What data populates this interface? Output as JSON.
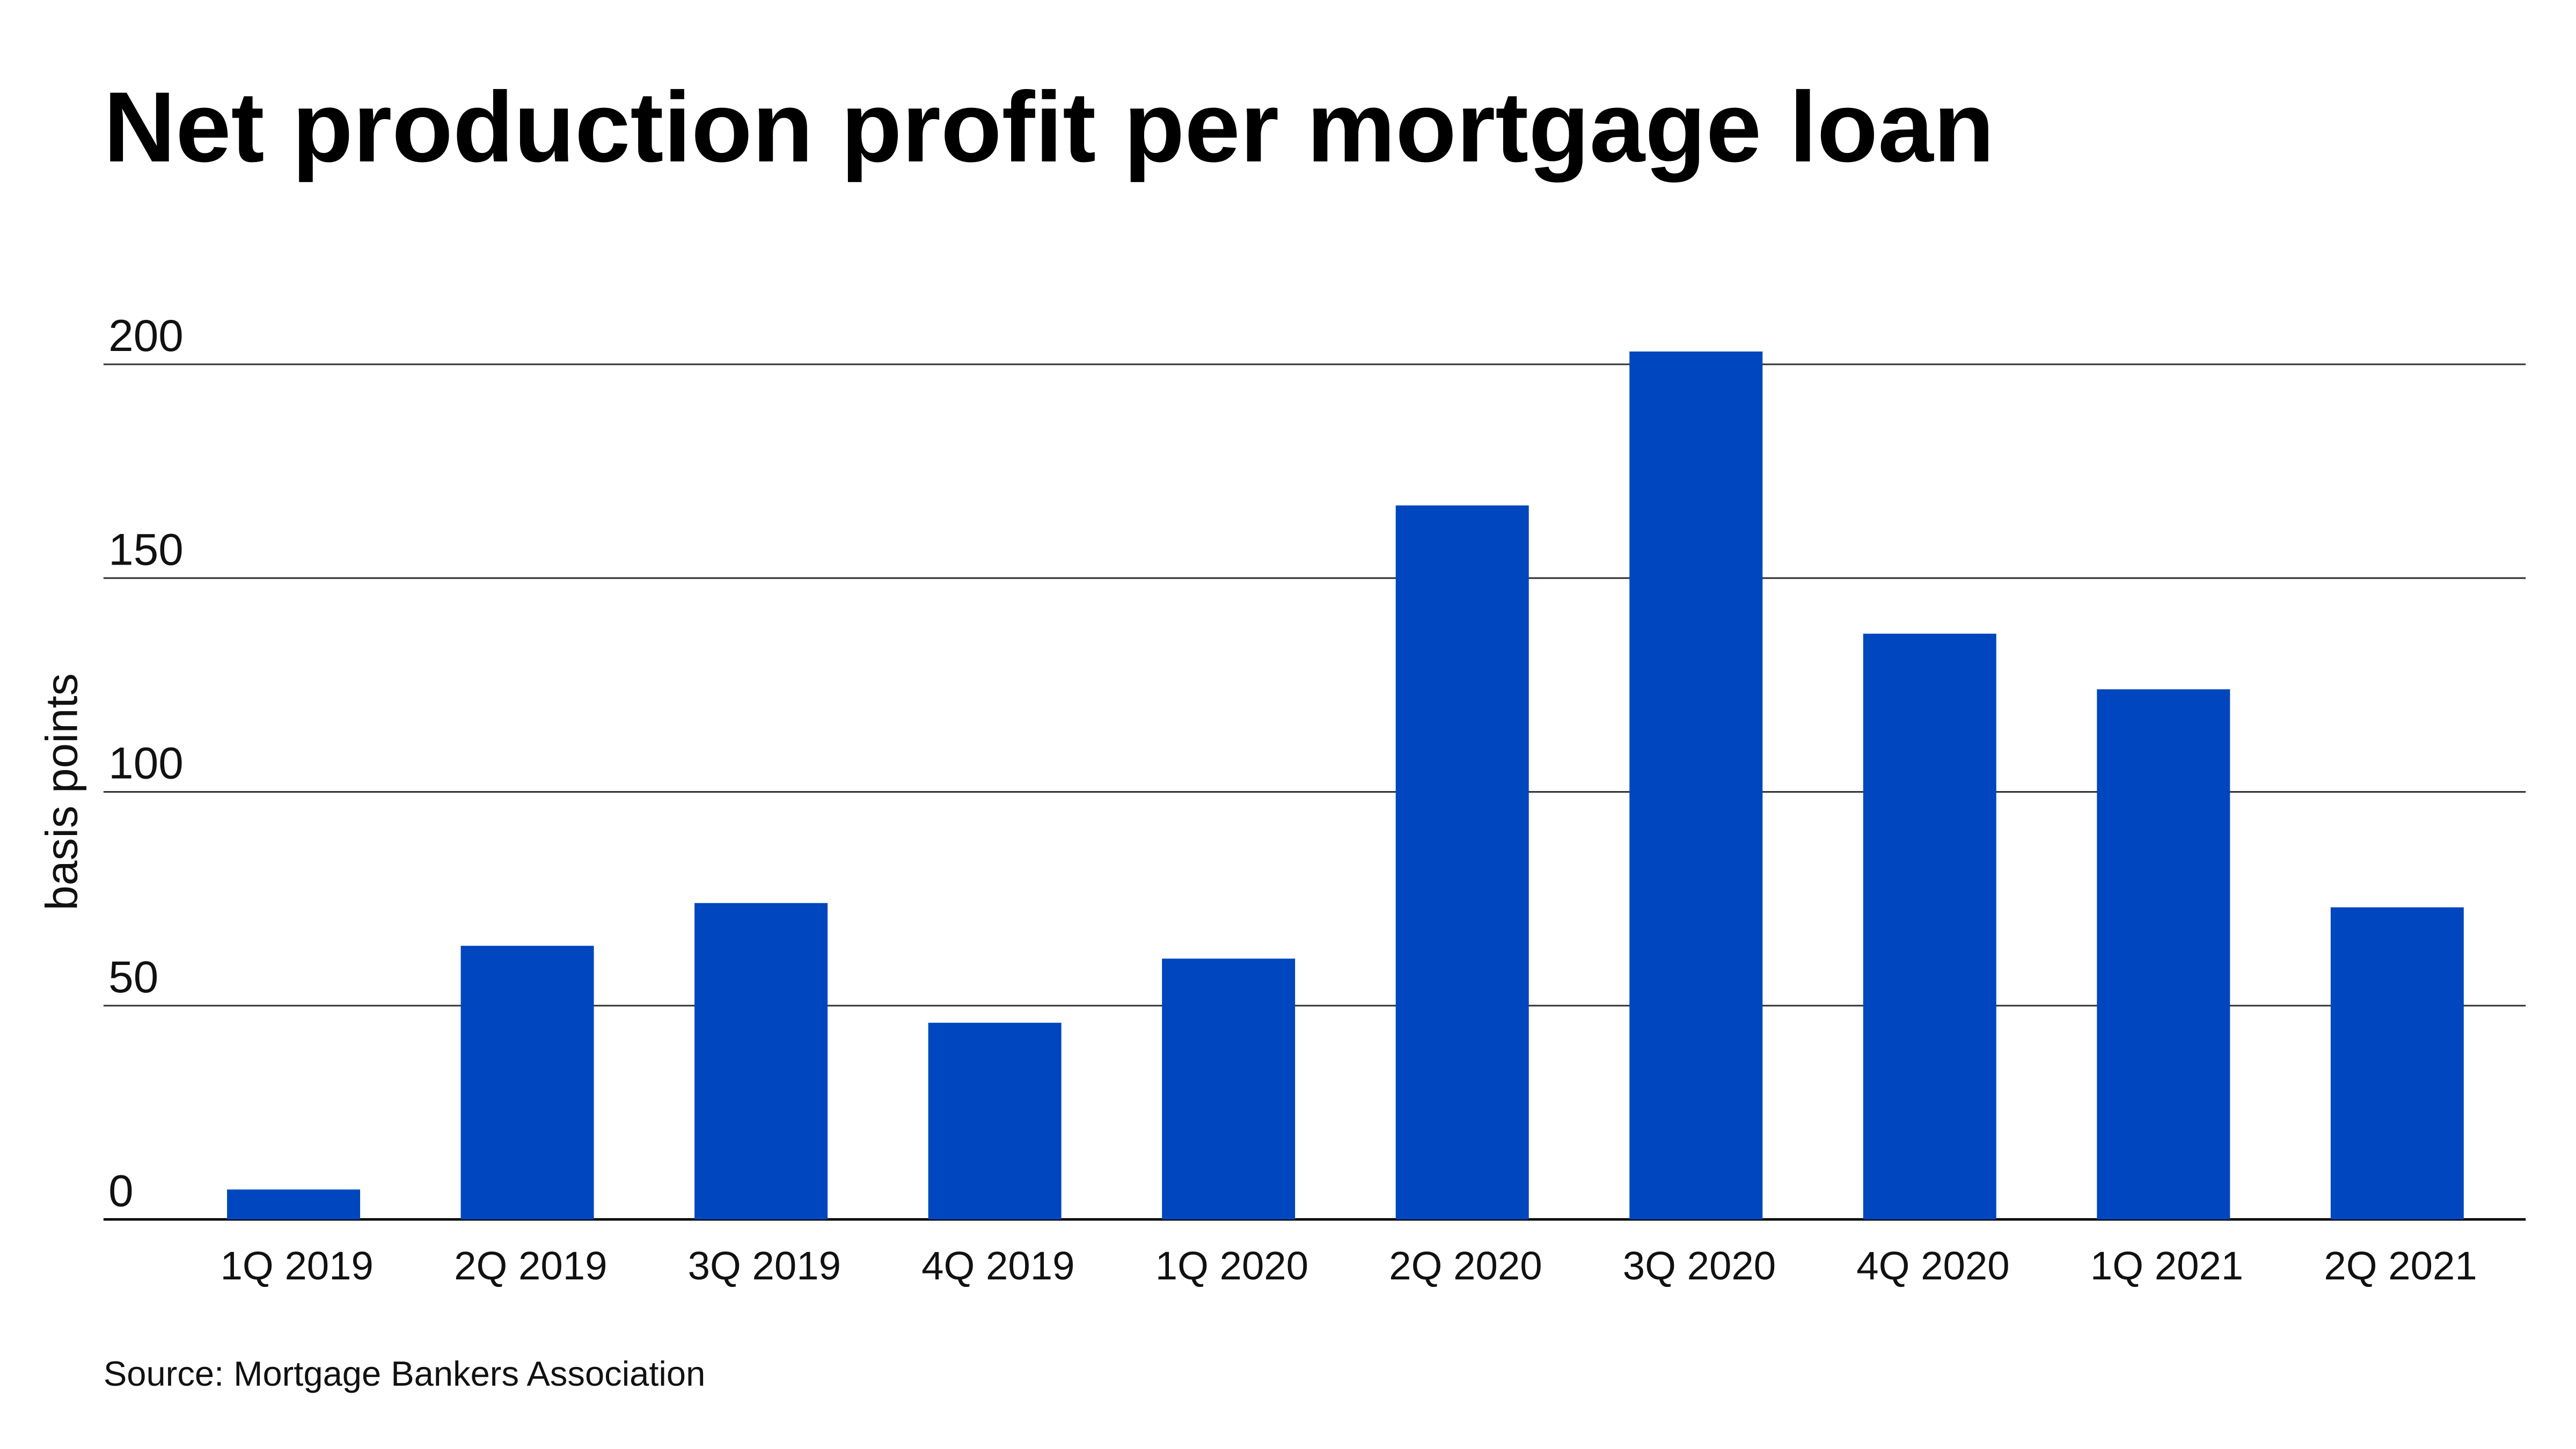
{
  "chart_data": {
    "type": "bar",
    "title": "Net production profit per mortgage loan",
    "y_label": "basis points",
    "source": "Source: Mortgage Bankers Association",
    "categories": [
      "1Q 2019",
      "2Q 2019",
      "3Q 2019",
      "4Q 2019",
      "1Q 2020",
      "2Q 2020",
      "3Q 2020",
      "4Q 2020",
      "1Q 2021",
      "2Q 2021"
    ],
    "values": [
      7,
      64,
      74,
      46,
      61,
      167,
      203,
      137,
      124,
      73
    ],
    "color": "#0046be",
    "ylim": [
      0,
      210
    ],
    "yticks": [
      0,
      50,
      100,
      150,
      200
    ],
    "grid": true
  }
}
